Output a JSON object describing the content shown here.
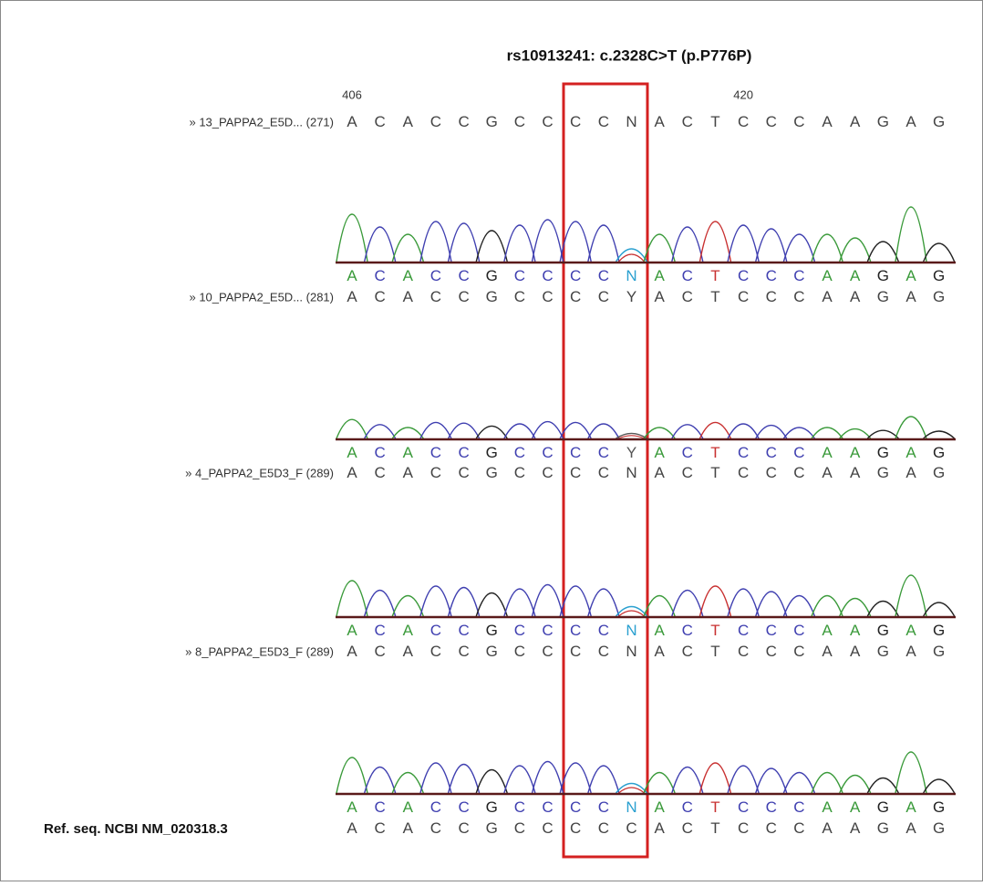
{
  "title": "rs10913241: c.2328C>T (p.P776P)",
  "position_labels": [
    406,
    420
  ],
  "base_colors": {
    "A": "#3a9a3a",
    "C": "#3f3fb0",
    "G": "#222222",
    "T": "#c83030",
    "N": "#2aa0d0",
    "Y": "#555555"
  },
  "rows": [
    {
      "label": "» 13_PAPPA2_E5D... (271)",
      "sequence": "ACACCGCCCCNACTCCCAAGAG"
    },
    {
      "label": "» 10_PAPPA2_E5D... (281)",
      "sequence": "ACACCGCCCCYACTCCCAAGAG"
    },
    {
      "label": "» 4_PAPPA2_E5D3_F (289)",
      "sequence": "ACACCGCCCCNACTCCCAAGAG"
    },
    {
      "label": "» 8_PAPPA2_E5D3_F (289)",
      "sequence": "ACACCGCCCCNACTCCCAAGAG"
    },
    {
      "label": "Ref. seq. NCBI NM_020318.3",
      "sequence": "ACACCGCCCCCACTCCCAAGAG"
    }
  ],
  "traces": [
    {
      "bases": "ACACCGCCCCNACTCCCAAGAG"
    },
    {
      "bases": "ACACCGCCCCYACTCCCAAGAG"
    },
    {
      "bases": "ACACCGCCCCNACTCCCAAGAG"
    },
    {
      "bases": "ACACCGCCCCNACTCCCAAGAG"
    }
  ]
}
